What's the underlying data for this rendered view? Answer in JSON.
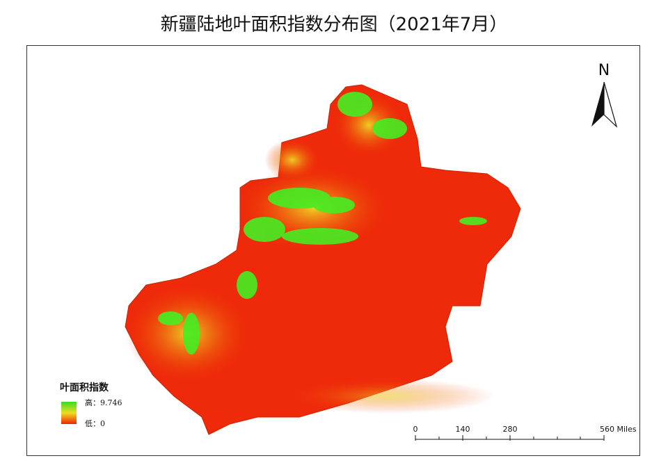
{
  "title": "新疆陆地叶面积指数分布图（2021年7月）",
  "north_arrow": "N",
  "legend": {
    "title": "叶面积指数",
    "high": "高：9.746",
    "low": "低：0"
  },
  "scale_bar": {
    "labels": [
      "0",
      "140",
      "280",
      "560 Miles"
    ]
  }
}
